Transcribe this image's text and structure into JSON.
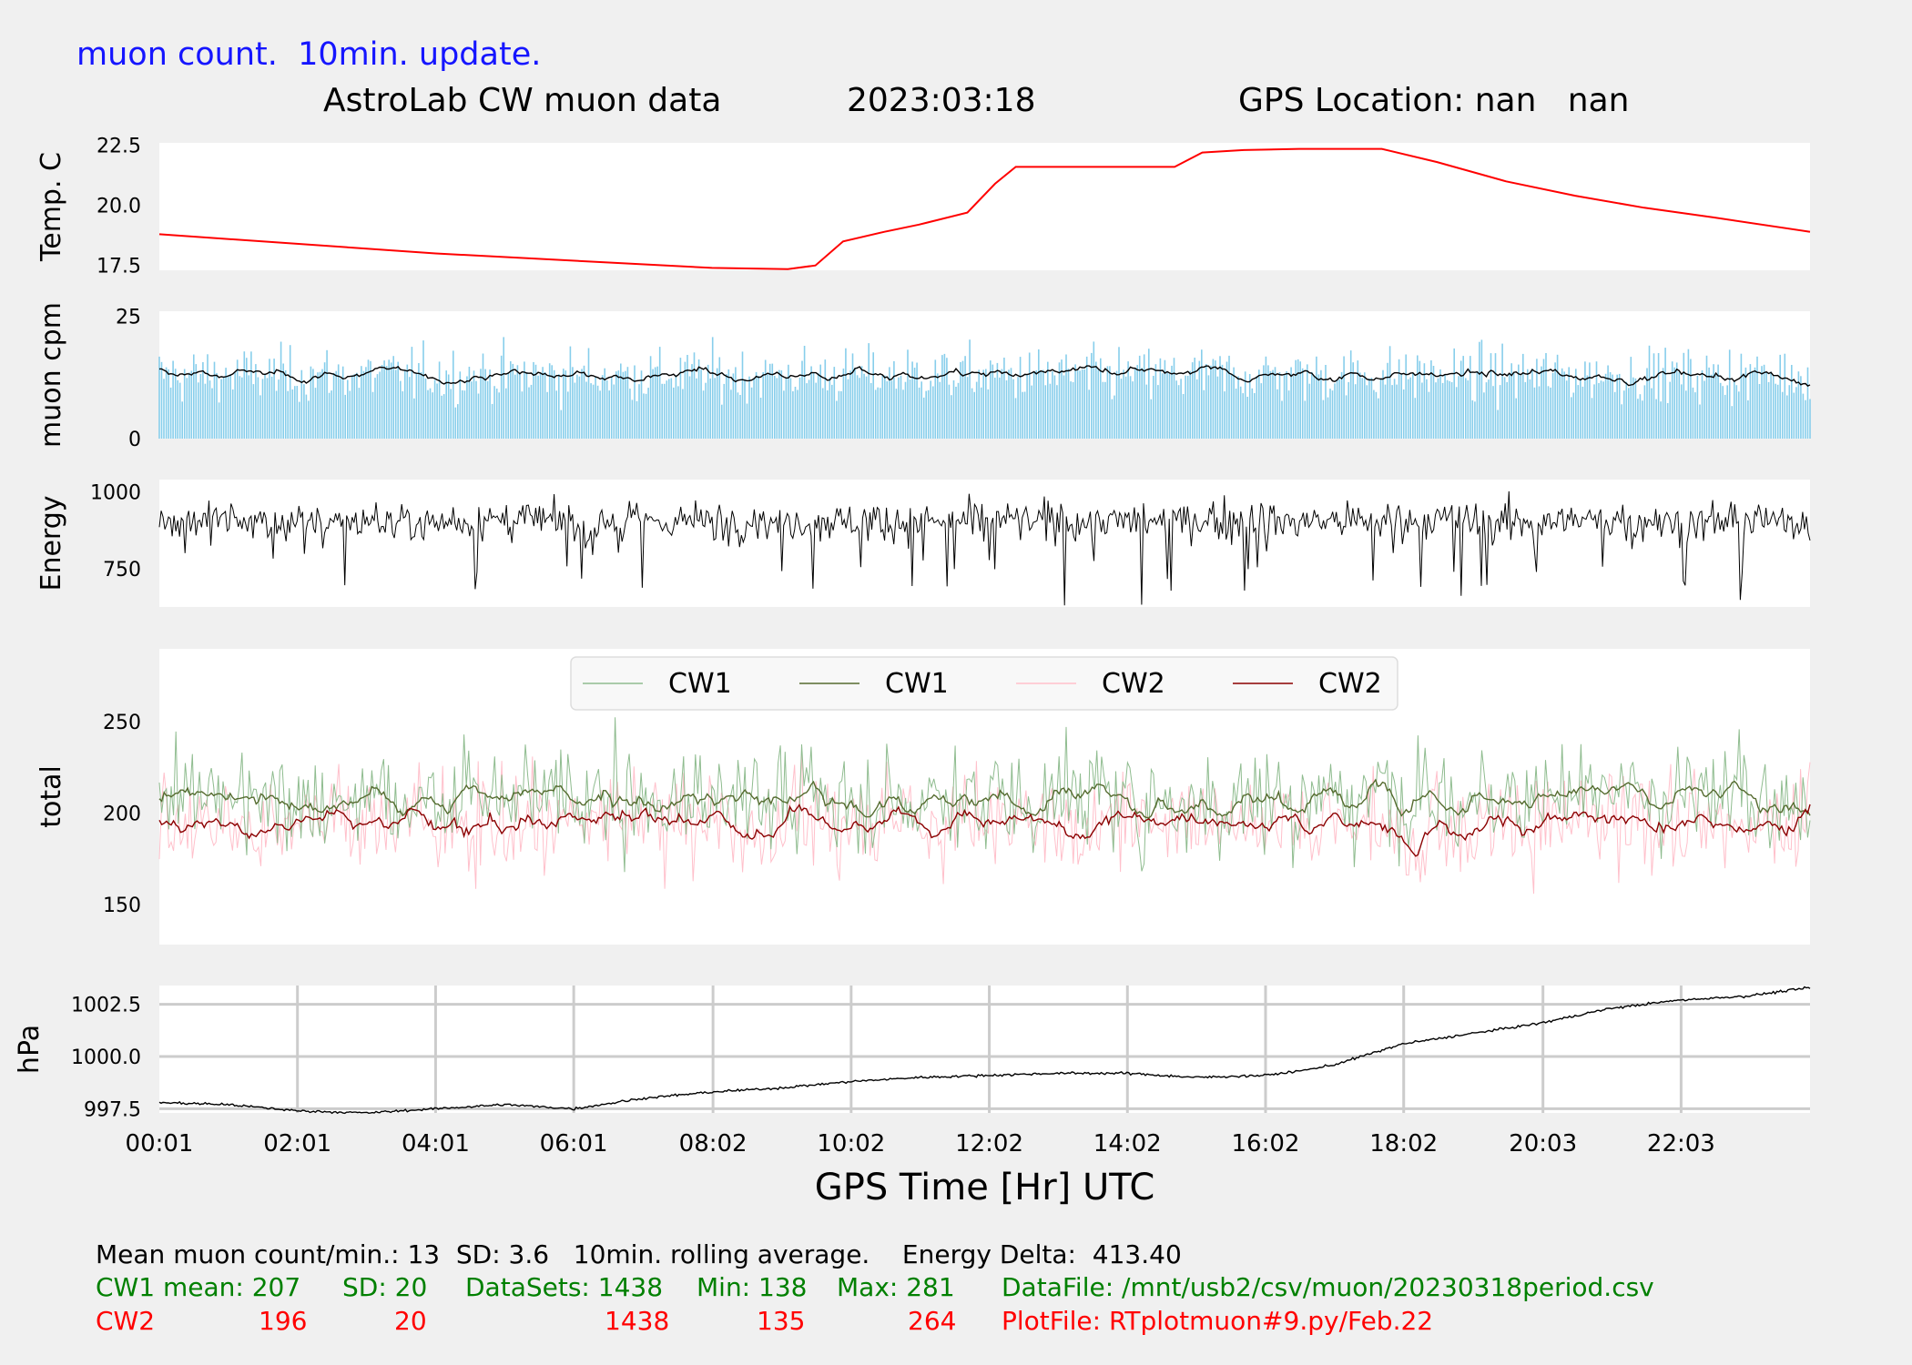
{
  "update_label": "muon count.  10min. update.",
  "header": {
    "title": "AstroLab CW muon data",
    "date": "2023:03:18",
    "gps": "GPS Location: nan   nan"
  },
  "colors": {
    "temp": "#ff0000",
    "muon_bars": "#87ceeb",
    "muon_avg": "#000000",
    "energy": "#000000",
    "cw1_raw": "#8fbc8f",
    "cw1_avg": "#556b2f",
    "cw2_raw": "#ffc0cb",
    "cw2_avg": "#8b0000",
    "pressure": "#000000",
    "grid": "#cccccc",
    "stats_black": "#000000",
    "stats_green": "#008000",
    "stats_red": "#ff0000"
  },
  "chart_data": [
    {
      "type": "line",
      "ylabel": "Temp. C",
      "yticks": [
        "17.5",
        "20.0",
        "22.5"
      ],
      "ylim": [
        17.3,
        22.6
      ],
      "x_hours": [
        0,
        4,
        8,
        9.1,
        9.5,
        9.9,
        10.5,
        11,
        11.7,
        12.1,
        12.4,
        13,
        13.7,
        14.7,
        15.1,
        15.7,
        16.5,
        17.2,
        17.7,
        18.5,
        19.5,
        20.5,
        21.5,
        22.5,
        23.9
      ],
      "y": [
        18.8,
        18.0,
        17.4,
        17.35,
        17.5,
        18.5,
        18.9,
        19.2,
        19.7,
        20.9,
        21.6,
        21.6,
        21.6,
        21.6,
        22.2,
        22.3,
        22.35,
        22.35,
        22.35,
        21.8,
        21.0,
        20.4,
        19.9,
        19.5,
        18.9
      ],
      "grid": false
    },
    {
      "type": "bar",
      "ylabel": "muon cpm",
      "yticks": [
        "0",
        "25"
      ],
      "ylim": [
        0,
        26
      ],
      "series": [
        {
          "values_stats": {
            "mean": 13,
            "sd": 3.6,
            "count": 1438
          }
        },
        {
          "name_hidden": "",
          "rolling_window_min": 10,
          "level": 13
        }
      ],
      "grid": false
    },
    {
      "type": "line",
      "ylabel": "Energy",
      "yticks": [
        "750",
        "1000"
      ],
      "ylim": [
        625,
        1040
      ],
      "series_stats": {
        "typical_low": 780,
        "typical_high": 990,
        "delta": 413.4
      },
      "grid": false
    },
    {
      "type": "line",
      "ylabel": "total",
      "yticks": [
        "150",
        "200",
        "250"
      ],
      "ylim": [
        128,
        290
      ],
      "legend": [
        "CW1",
        "CW1",
        "CW2",
        "CW2"
      ],
      "legend_position": "top-center",
      "series": [
        {
          "name": "CW1",
          "mean": 207,
          "sd": 20,
          "min": 138,
          "max": 281
        },
        {
          "name": "CW1",
          "mean": 207
        },
        {
          "name": "CW2",
          "mean": 196,
          "sd": 20,
          "min": 135,
          "max": 264
        },
        {
          "name": "CW2",
          "mean": 196
        }
      ],
      "grid": false
    },
    {
      "type": "line",
      "ylabel": "hPa",
      "xlabel": "GPS Time  [Hr] UTC",
      "yticks": [
        "997.5",
        "1000.0",
        "1002.5"
      ],
      "ylim": [
        997.3,
        1003.4
      ],
      "xticks": [
        "00:01",
        "02:01",
        "04:01",
        "06:01",
        "08:02",
        "10:02",
        "12:02",
        "14:02",
        "16:02",
        "18:02",
        "20:03",
        "22:03"
      ],
      "x_hours": [
        0,
        1,
        2,
        3,
        4,
        5,
        6,
        7,
        8,
        9,
        10,
        11,
        12,
        13,
        14,
        15,
        16,
        16.5,
        17,
        18,
        19,
        20,
        21,
        22,
        23,
        23.9
      ],
      "y": [
        997.8,
        997.7,
        997.4,
        997.3,
        997.5,
        997.7,
        997.5,
        998.0,
        998.3,
        998.5,
        998.8,
        999.0,
        999.1,
        999.2,
        999.2,
        999.0,
        999.1,
        999.3,
        999.6,
        1000.6,
        1001.1,
        1001.6,
        1002.3,
        1002.7,
        1002.9,
        1003.3
      ],
      "grid": true
    }
  ],
  "stats": {
    "line1": "Mean muon count/min.: 13  SD: 3.6   10min. rolling average.    Energy Delta:  413.40",
    "cw1": {
      "label": "CW1 mean: 207",
      "sd": "SD: 20",
      "datasets": "DataSets: 1438",
      "min": "Min: 138",
      "max": "Max: 281",
      "file": "DataFile: /mnt/usb2/csv/muon/20230318period.csv"
    },
    "cw2": {
      "label": "CW2",
      "mean": "196",
      "sd": "20",
      "datasets": "1438",
      "min": "135",
      "max": "264",
      "file": "PlotFile: RTplotmuon#9.py/Feb.22"
    }
  }
}
